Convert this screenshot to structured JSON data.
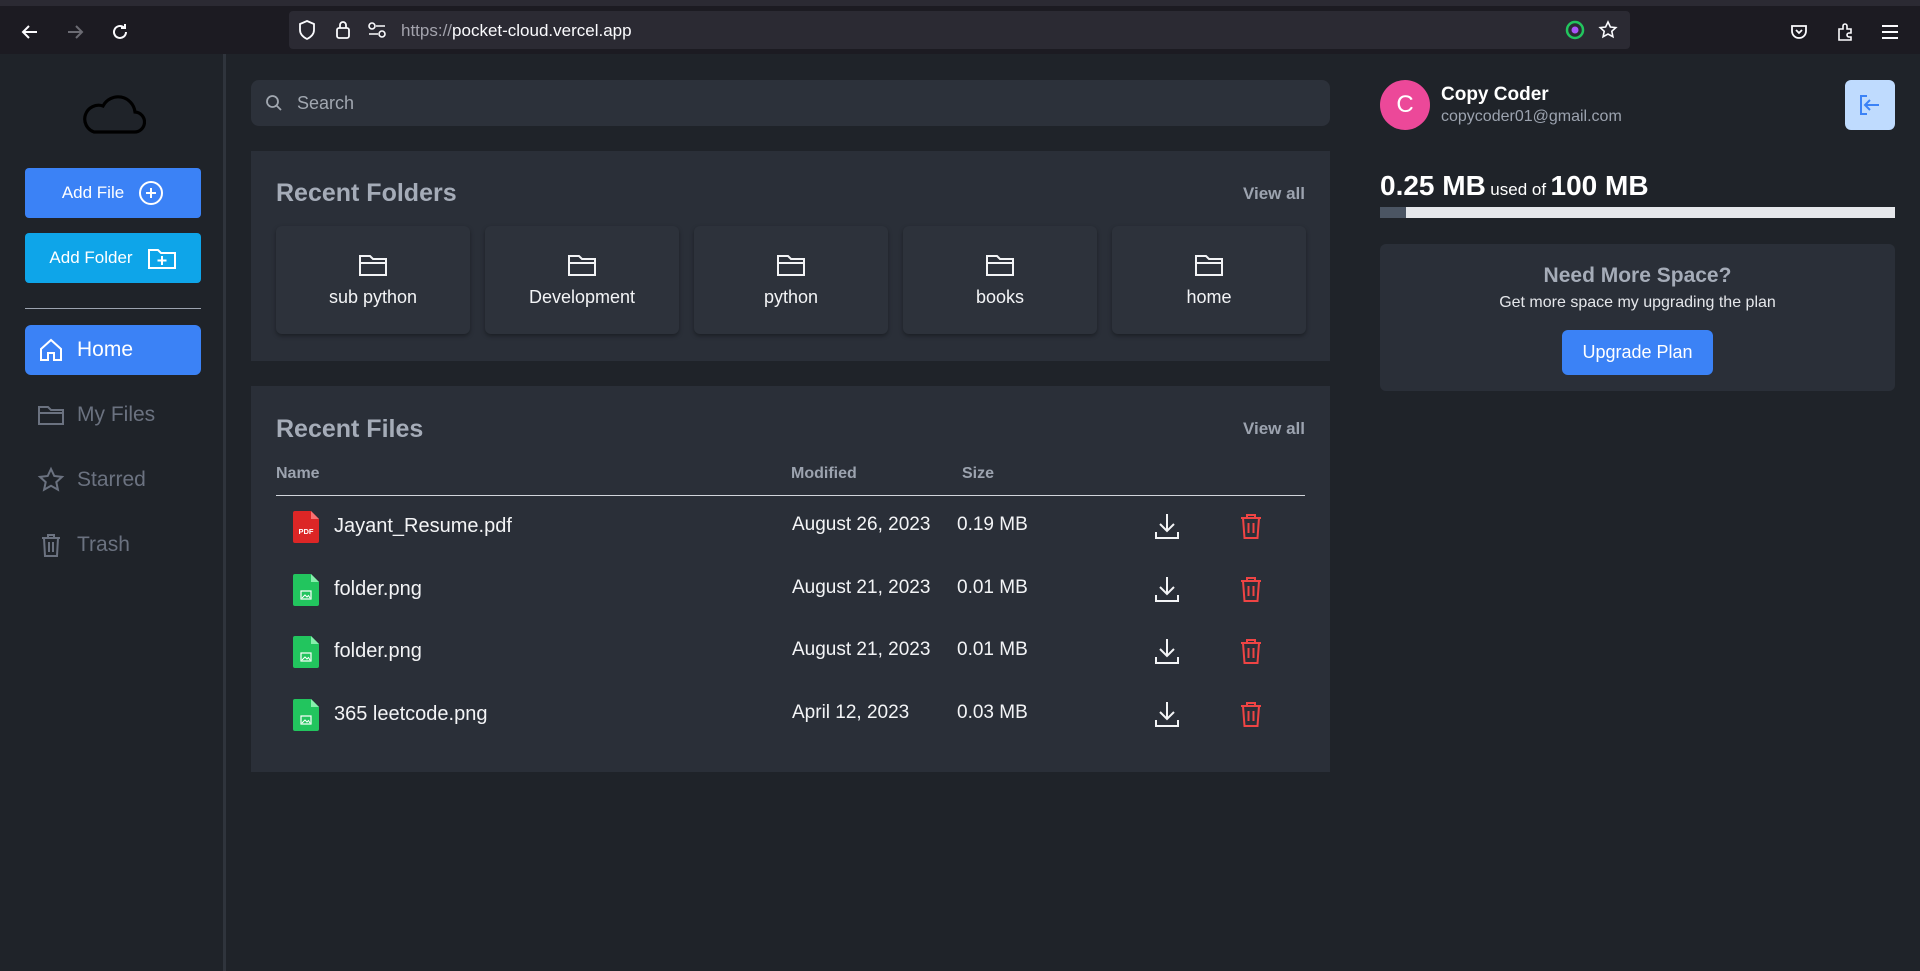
{
  "browser": {
    "url_protocol": "https://",
    "url_host": "pocket-cloud.vercel.app"
  },
  "sidebar": {
    "add_file_label": "Add File",
    "add_folder_label": "Add Folder",
    "nav": [
      {
        "label": "Home",
        "icon": "home-icon",
        "active": true
      },
      {
        "label": "My Files",
        "icon": "folder-icon",
        "active": false
      },
      {
        "label": "Starred",
        "icon": "star-icon",
        "active": false
      },
      {
        "label": "Trash",
        "icon": "trash-icon",
        "active": false
      }
    ]
  },
  "search": {
    "placeholder": "Search"
  },
  "recent_folders": {
    "title": "Recent Folders",
    "view_all": "View all",
    "folders": [
      "sub python",
      "Development",
      "python",
      "books",
      "home"
    ]
  },
  "recent_files": {
    "title": "Recent Files",
    "view_all": "View all",
    "columns": {
      "name": "Name",
      "modified": "Modified",
      "size": "Size"
    },
    "rows": [
      {
        "name": "Jayant_Resume.pdf",
        "modified": "August 26, 2023",
        "size": "0.19 MB",
        "type": "pdf"
      },
      {
        "name": "folder.png",
        "modified": "August 21, 2023",
        "size": "0.01 MB",
        "type": "image"
      },
      {
        "name": "folder.png",
        "modified": "August 21, 2023",
        "size": "0.01 MB",
        "type": "image"
      },
      {
        "name": "365 leetcode.png",
        "modified": "April 12, 2023",
        "size": "0.03 MB",
        "type": "image"
      }
    ]
  },
  "user": {
    "initial": "C",
    "name": "Copy Coder",
    "email": "copycoder01@gmail.com"
  },
  "storage": {
    "used": "0.25 MB",
    "used_of": "used of",
    "total": "100 MB",
    "used_fraction": 0.0025
  },
  "upgrade": {
    "title": "Need More Space?",
    "subtitle": "Get more space my upgrading the plan",
    "button": "Upgrade Plan"
  },
  "colors": {
    "accent": "#3b82f6",
    "add_folder": "#0ea5e9",
    "danger": "#ef4444",
    "avatar": "#ec4899"
  }
}
